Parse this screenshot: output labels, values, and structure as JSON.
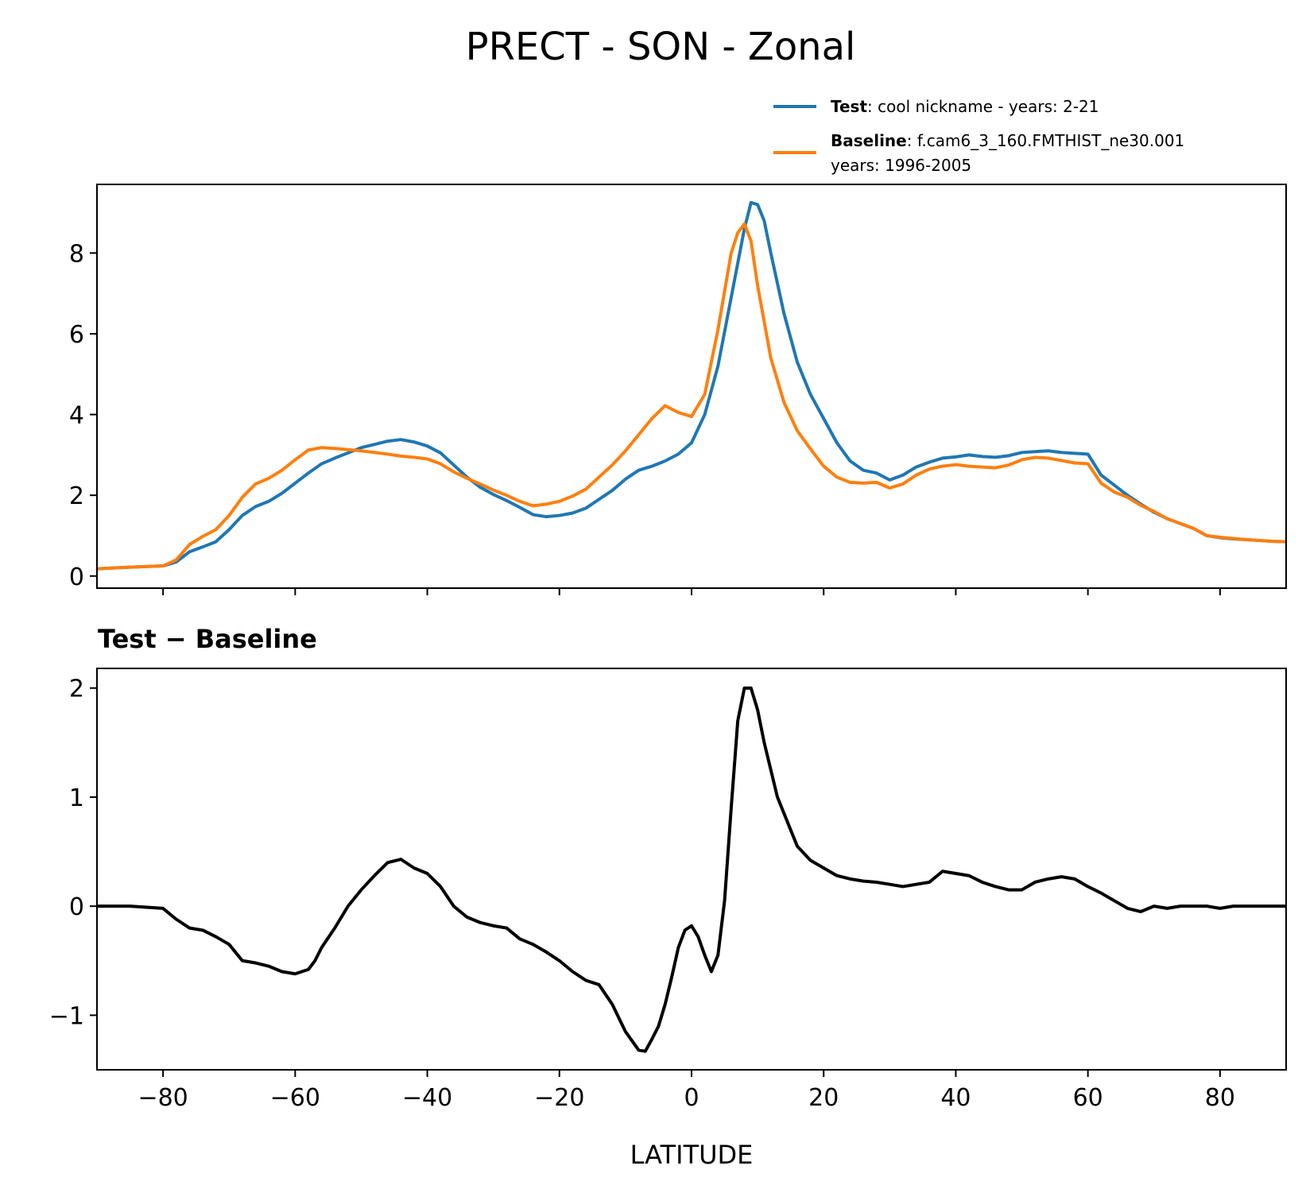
{
  "title": "PRECT - SON - Zonal",
  "legend": {
    "test_name": "Test",
    "test_desc": ": cool nickname - years: 2-21",
    "baseline_name": "Baseline",
    "baseline_desc": ": f.cam6_3_160.FMTHIST_ne30.001",
    "baseline_desc2": "years: 1996-2005"
  },
  "diff_title": "Test − Baseline",
  "colors": {
    "test": "#1f77b4",
    "baseline": "#ff7f0e",
    "diff": "#000000"
  },
  "chart_data": [
    {
      "type": "line",
      "xlabel": "",
      "ylabel": "",
      "xlim": [
        -90,
        90
      ],
      "ylim": [
        -0.3,
        9.7
      ],
      "xticks": [
        -80,
        -60,
        -40,
        -20,
        0,
        20,
        40,
        60,
        80
      ],
      "yticks": [
        0,
        2,
        4,
        6,
        8
      ],
      "legend_position": "top-right, above plot",
      "series": [
        {
          "name": "Test",
          "x": [
            -90,
            -85,
            -80,
            -78,
            -76,
            -74,
            -72,
            -70,
            -68,
            -66,
            -64,
            -62,
            -60,
            -58,
            -56,
            -54,
            -52,
            -50,
            -48,
            -46,
            -44,
            -42,
            -40,
            -38,
            -36,
            -34,
            -32,
            -30,
            -28,
            -26,
            -24,
            -22,
            -20,
            -18,
            -16,
            -14,
            -12,
            -10,
            -8,
            -6,
            -4,
            -2,
            0,
            2,
            4,
            6,
            8,
            9,
            10,
            11,
            12,
            14,
            16,
            18,
            20,
            22,
            24,
            26,
            28,
            30,
            32,
            34,
            36,
            38,
            40,
            42,
            44,
            46,
            48,
            50,
            52,
            54,
            56,
            58,
            60,
            62,
            64,
            66,
            68,
            70,
            72,
            74,
            76,
            78,
            80,
            82,
            84,
            86,
            88,
            90
          ],
          "values": [
            0.18,
            0.22,
            0.25,
            0.35,
            0.6,
            0.72,
            0.85,
            1.15,
            1.5,
            1.72,
            1.85,
            2.05,
            2.3,
            2.55,
            2.78,
            2.92,
            3.05,
            3.18,
            3.26,
            3.34,
            3.38,
            3.32,
            3.22,
            3.05,
            2.75,
            2.45,
            2.2,
            2.02,
            1.87,
            1.7,
            1.52,
            1.47,
            1.5,
            1.56,
            1.68,
            1.9,
            2.12,
            2.4,
            2.62,
            2.72,
            2.85,
            3.02,
            3.3,
            4.0,
            5.2,
            6.9,
            8.6,
            9.25,
            9.2,
            8.8,
            8.0,
            6.5,
            5.3,
            4.5,
            3.9,
            3.3,
            2.85,
            2.62,
            2.55,
            2.38,
            2.5,
            2.7,
            2.82,
            2.92,
            2.95,
            3.0,
            2.96,
            2.94,
            2.98,
            3.06,
            3.08,
            3.1,
            3.06,
            3.04,
            3.02,
            2.5,
            2.25,
            2.0,
            1.78,
            1.58,
            1.42,
            1.3,
            1.18,
            1.0,
            0.95,
            0.92,
            0.9,
            0.88,
            0.86,
            0.85
          ]
        },
        {
          "name": "Baseline",
          "x": [
            -90,
            -85,
            -80,
            -78,
            -76,
            -74,
            -72,
            -70,
            -68,
            -66,
            -64,
            -62,
            -60,
            -58,
            -56,
            -54,
            -52,
            -50,
            -48,
            -46,
            -44,
            -42,
            -40,
            -38,
            -36,
            -34,
            -32,
            -30,
            -28,
            -26,
            -24,
            -22,
            -20,
            -18,
            -16,
            -14,
            -12,
            -10,
            -8,
            -6,
            -4,
            -2,
            0,
            2,
            4,
            6,
            7,
            8,
            9,
            10,
            12,
            14,
            16,
            18,
            20,
            22,
            24,
            26,
            28,
            30,
            32,
            34,
            36,
            38,
            40,
            42,
            44,
            46,
            48,
            50,
            52,
            54,
            56,
            58,
            60,
            62,
            64,
            66,
            68,
            70,
            72,
            74,
            76,
            78,
            80,
            82,
            84,
            86,
            88,
            90
          ],
          "values": [
            0.18,
            0.22,
            0.25,
            0.4,
            0.78,
            0.98,
            1.15,
            1.5,
            1.95,
            2.28,
            2.42,
            2.62,
            2.88,
            3.12,
            3.18,
            3.16,
            3.13,
            3.1,
            3.06,
            3.02,
            2.97,
            2.94,
            2.9,
            2.78,
            2.58,
            2.42,
            2.28,
            2.13,
            2.0,
            1.85,
            1.74,
            1.78,
            1.85,
            1.98,
            2.15,
            2.45,
            2.75,
            3.1,
            3.5,
            3.9,
            4.22,
            4.05,
            3.95,
            4.5,
            6.1,
            8.0,
            8.5,
            8.72,
            8.3,
            7.2,
            5.4,
            4.3,
            3.6,
            3.15,
            2.72,
            2.45,
            2.32,
            2.3,
            2.32,
            2.18,
            2.28,
            2.5,
            2.65,
            2.72,
            2.76,
            2.72,
            2.7,
            2.68,
            2.75,
            2.88,
            2.94,
            2.92,
            2.86,
            2.8,
            2.78,
            2.3,
            2.08,
            1.95,
            1.75,
            1.6,
            1.42,
            1.3,
            1.18,
            1.0,
            0.96,
            0.93,
            0.9,
            0.88,
            0.86,
            0.85
          ]
        }
      ]
    },
    {
      "type": "line",
      "title": "Test − Baseline",
      "xlabel": "LATITUDE",
      "ylabel": "",
      "xlim": [
        -90,
        90
      ],
      "ylim": [
        -1.5,
        2.18
      ],
      "xticks": [
        -80,
        -60,
        -40,
        -20,
        0,
        20,
        40,
        60,
        80
      ],
      "yticks": [
        -1,
        0,
        1,
        2
      ],
      "xticklabels": [
        "−80",
        "−60",
        "−40",
        "−20",
        "0",
        "20",
        "40",
        "60",
        "80"
      ],
      "yticklabels": [
        "−1",
        "0",
        "1",
        "2"
      ],
      "series": [
        {
          "name": "Test − Baseline",
          "x": [
            -90,
            -85,
            -80,
            -78,
            -76,
            -74,
            -72,
            -70,
            -68,
            -66,
            -64,
            -62,
            -60,
            -58,
            -57,
            -56,
            -54,
            -52,
            -50,
            -48,
            -46,
            -44,
            -42,
            -40,
            -38,
            -36,
            -34,
            -32,
            -30,
            -28,
            -26,
            -24,
            -22,
            -20,
            -18,
            -16,
            -14,
            -12,
            -10,
            -8,
            -7,
            -6,
            -5,
            -4,
            -3,
            -2,
            -1,
            0,
            1,
            2,
            3,
            4,
            5,
            6,
            7,
            8,
            9,
            10,
            11,
            12,
            13,
            14,
            15,
            16,
            18,
            20,
            22,
            24,
            26,
            28,
            30,
            32,
            34,
            36,
            38,
            40,
            42,
            44,
            46,
            48,
            50,
            52,
            54,
            56,
            58,
            60,
            62,
            64,
            66,
            68,
            70,
            72,
            74,
            76,
            78,
            80,
            82,
            84,
            86,
            88,
            90
          ],
          "values": [
            0.0,
            0.0,
            -0.02,
            -0.12,
            -0.2,
            -0.22,
            -0.28,
            -0.35,
            -0.5,
            -0.52,
            -0.55,
            -0.6,
            -0.62,
            -0.58,
            -0.5,
            -0.38,
            -0.2,
            0.0,
            0.15,
            0.28,
            0.4,
            0.43,
            0.35,
            0.3,
            0.18,
            0.0,
            -0.1,
            -0.15,
            -0.18,
            -0.2,
            -0.3,
            -0.35,
            -0.42,
            -0.5,
            -0.6,
            -0.68,
            -0.72,
            -0.9,
            -1.15,
            -1.32,
            -1.33,
            -1.22,
            -1.1,
            -0.9,
            -0.65,
            -0.38,
            -0.22,
            -0.18,
            -0.28,
            -0.45,
            -0.6,
            -0.45,
            0.05,
            0.9,
            1.7,
            2.0,
            2.0,
            1.8,
            1.5,
            1.25,
            1.0,
            0.85,
            0.7,
            0.55,
            0.42,
            0.35,
            0.28,
            0.25,
            0.23,
            0.22,
            0.2,
            0.18,
            0.2,
            0.22,
            0.32,
            0.3,
            0.28,
            0.22,
            0.18,
            0.15,
            0.15,
            0.22,
            0.25,
            0.27,
            0.25,
            0.18,
            0.12,
            0.05,
            -0.02,
            -0.05,
            0.0,
            -0.02,
            0.0,
            0.0,
            0.0,
            -0.02,
            0.0,
            0.0,
            0.0,
            0.0,
            0.0
          ]
        }
      ]
    }
  ]
}
